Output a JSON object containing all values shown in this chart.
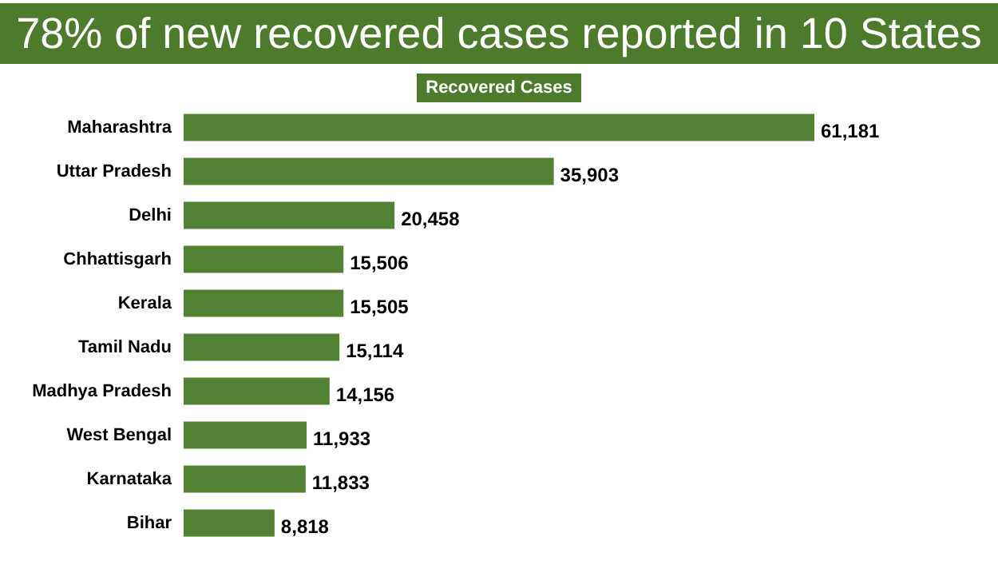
{
  "chart_data": {
    "type": "bar",
    "orientation": "horizontal",
    "title": "78% of new recovered cases reported in 10 States",
    "subtitle": "Recovered Cases",
    "categories": [
      "Maharashtra",
      "Uttar Pradesh",
      "Delhi",
      "Chhattisgarh",
      "Kerala",
      "Tamil Nadu",
      "Madhya Pradesh",
      "West Bengal",
      "Karnataka",
      "Bihar"
    ],
    "values": [
      61181,
      35903,
      20458,
      15506,
      15505,
      15114,
      14156,
      11933,
      11833,
      8818
    ],
    "value_labels": [
      "61,181",
      "35,903",
      "20,458",
      "15,506",
      "15,505",
      "15,114",
      "14,156",
      "11,933",
      "11,833",
      "8,818"
    ],
    "color": "#548235"
  }
}
